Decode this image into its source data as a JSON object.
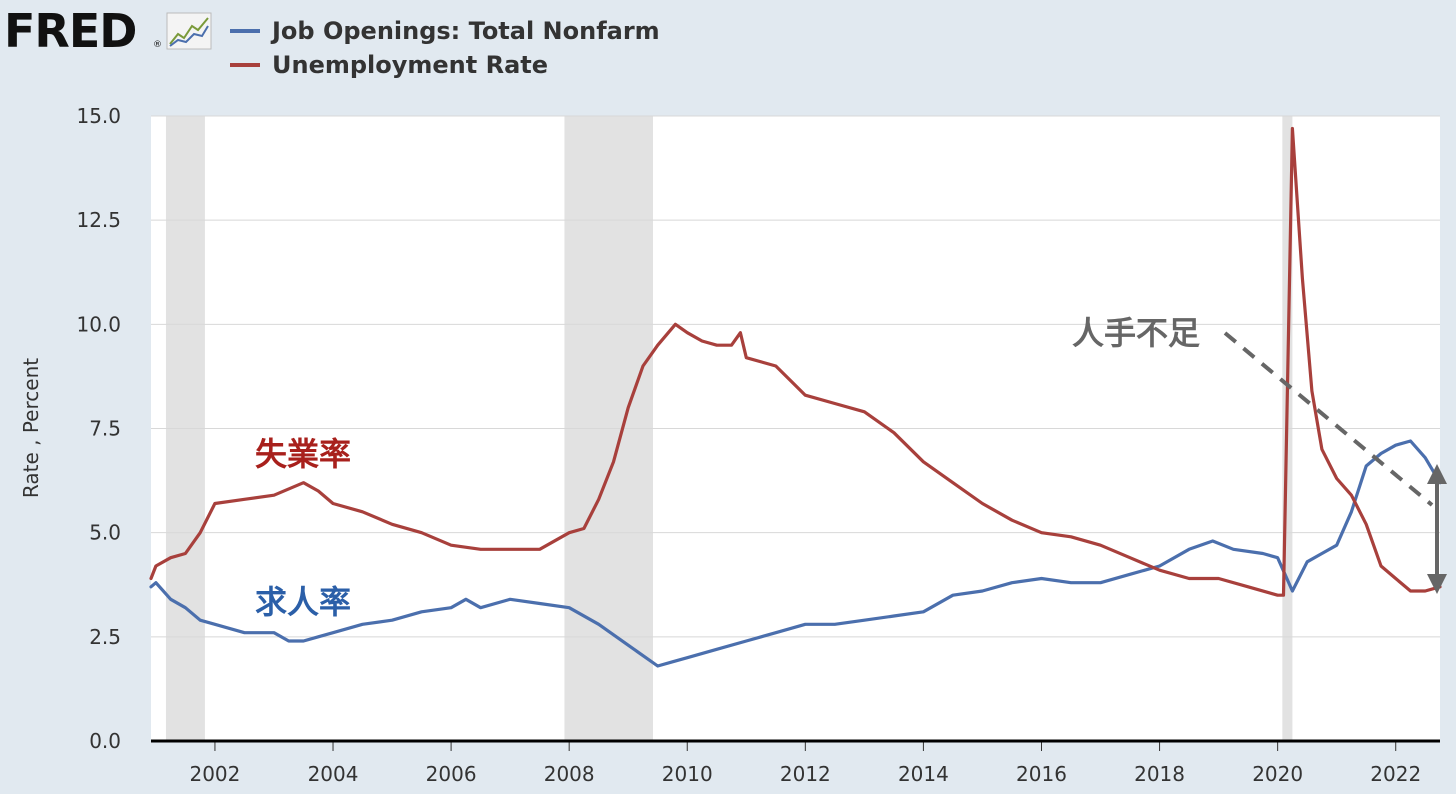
{
  "header": {
    "logo_text": "FRED",
    "logo_reg": "®",
    "logo_icon": "line-graph-icon"
  },
  "colors": {
    "job_openings": "#4b6fad",
    "unemployment": "#a8403c",
    "recession": "#e2e2e2",
    "grid": "#d8d8d8",
    "annotation_gray": "#666666"
  },
  "legend": [
    {
      "label": "Job Openings: Total Nonfarm",
      "color": "#4b6fad"
    },
    {
      "label": "Unemployment Rate",
      "color": "#a8403c"
    }
  ],
  "annotations": {
    "unemployment_label": "失業率",
    "job_openings_label": "求人率",
    "labor_shortage_label": "人手不足"
  },
  "chart_data": {
    "type": "line",
    "title": "",
    "xlabel": "",
    "ylabel": "Rate , Percent",
    "xlim": [
      2000.917,
      2022.75
    ],
    "ylim": [
      0,
      15
    ],
    "y_ticks": [
      "0.0",
      "2.5",
      "5.0",
      "7.5",
      "10.0",
      "12.5",
      "15.0"
    ],
    "x_ticks": [
      "2002",
      "2004",
      "2006",
      "2008",
      "2010",
      "2012",
      "2014",
      "2016",
      "2018",
      "2020",
      "2022"
    ],
    "grid": true,
    "legend_position": "top-left",
    "recessions": [
      [
        2001.17,
        2001.83
      ],
      [
        2007.92,
        2009.42
      ],
      [
        2020.08,
        2020.25
      ]
    ],
    "series": [
      {
        "name": "Job Openings: Total Nonfarm",
        "points": [
          [
            2000.917,
            3.7
          ],
          [
            2001.0,
            3.8
          ],
          [
            2001.25,
            3.4
          ],
          [
            2001.5,
            3.2
          ],
          [
            2001.75,
            2.9
          ],
          [
            2002.0,
            2.8
          ],
          [
            2002.5,
            2.6
          ],
          [
            2003.0,
            2.6
          ],
          [
            2003.25,
            2.4
          ],
          [
            2003.5,
            2.4
          ],
          [
            2003.75,
            2.5
          ],
          [
            2004.0,
            2.6
          ],
          [
            2004.5,
            2.8
          ],
          [
            2005.0,
            2.9
          ],
          [
            2005.5,
            3.1
          ],
          [
            2006.0,
            3.2
          ],
          [
            2006.25,
            3.4
          ],
          [
            2006.5,
            3.2
          ],
          [
            2007.0,
            3.4
          ],
          [
            2007.5,
            3.3
          ],
          [
            2008.0,
            3.2
          ],
          [
            2008.5,
            2.8
          ],
          [
            2009.0,
            2.3
          ],
          [
            2009.5,
            1.8
          ],
          [
            2009.75,
            1.9
          ],
          [
            2010.0,
            2.0
          ],
          [
            2010.5,
            2.2
          ],
          [
            2011.0,
            2.4
          ],
          [
            2011.5,
            2.6
          ],
          [
            2012.0,
            2.8
          ],
          [
            2012.5,
            2.8
          ],
          [
            2013.0,
            2.9
          ],
          [
            2013.5,
            3.0
          ],
          [
            2014.0,
            3.1
          ],
          [
            2014.5,
            3.5
          ],
          [
            2015.0,
            3.6
          ],
          [
            2015.5,
            3.8
          ],
          [
            2016.0,
            3.9
          ],
          [
            2016.5,
            3.8
          ],
          [
            2017.0,
            3.8
          ],
          [
            2017.5,
            4.0
          ],
          [
            2018.0,
            4.2
          ],
          [
            2018.5,
            4.6
          ],
          [
            2018.9,
            4.8
          ],
          [
            2019.25,
            4.6
          ],
          [
            2019.75,
            4.5
          ],
          [
            2020.0,
            4.4
          ],
          [
            2020.25,
            3.6
          ],
          [
            2020.5,
            4.3
          ],
          [
            2020.75,
            4.5
          ],
          [
            2021.0,
            4.7
          ],
          [
            2021.25,
            5.5
          ],
          [
            2021.5,
            6.6
          ],
          [
            2021.75,
            6.9
          ],
          [
            2022.0,
            7.1
          ],
          [
            2022.25,
            7.2
          ],
          [
            2022.5,
            6.8
          ],
          [
            2022.75,
            6.2
          ]
        ]
      },
      {
        "name": "Unemployment Rate",
        "points": [
          [
            2000.917,
            3.9
          ],
          [
            2001.0,
            4.2
          ],
          [
            2001.25,
            4.4
          ],
          [
            2001.5,
            4.5
          ],
          [
            2001.75,
            5.0
          ],
          [
            2002.0,
            5.7
          ],
          [
            2002.5,
            5.8
          ],
          [
            2003.0,
            5.9
          ],
          [
            2003.5,
            6.2
          ],
          [
            2003.75,
            6.0
          ],
          [
            2004.0,
            5.7
          ],
          [
            2004.5,
            5.5
          ],
          [
            2005.0,
            5.2
          ],
          [
            2005.5,
            5.0
          ],
          [
            2006.0,
            4.7
          ],
          [
            2006.5,
            4.6
          ],
          [
            2007.0,
            4.6
          ],
          [
            2007.5,
            4.6
          ],
          [
            2008.0,
            5.0
          ],
          [
            2008.25,
            5.1
          ],
          [
            2008.5,
            5.8
          ],
          [
            2008.75,
            6.7
          ],
          [
            2009.0,
            8.0
          ],
          [
            2009.25,
            9.0
          ],
          [
            2009.5,
            9.5
          ],
          [
            2009.8,
            10.0
          ],
          [
            2010.0,
            9.8
          ],
          [
            2010.25,
            9.6
          ],
          [
            2010.5,
            9.5
          ],
          [
            2010.75,
            9.5
          ],
          [
            2010.9,
            9.8
          ],
          [
            2011.0,
            9.2
          ],
          [
            2011.5,
            9.0
          ],
          [
            2012.0,
            8.3
          ],
          [
            2012.5,
            8.1
          ],
          [
            2013.0,
            7.9
          ],
          [
            2013.5,
            7.4
          ],
          [
            2014.0,
            6.7
          ],
          [
            2014.5,
            6.2
          ],
          [
            2015.0,
            5.7
          ],
          [
            2015.5,
            5.3
          ],
          [
            2016.0,
            5.0
          ],
          [
            2016.5,
            4.9
          ],
          [
            2017.0,
            4.7
          ],
          [
            2017.5,
            4.4
          ],
          [
            2018.0,
            4.1
          ],
          [
            2018.5,
            3.9
          ],
          [
            2019.0,
            3.9
          ],
          [
            2019.5,
            3.7
          ],
          [
            2020.0,
            3.5
          ],
          [
            2020.1,
            3.5
          ],
          [
            2020.25,
            14.7
          ],
          [
            2020.42,
            11.1
          ],
          [
            2020.58,
            8.4
          ],
          [
            2020.75,
            7.0
          ],
          [
            2021.0,
            6.3
          ],
          [
            2021.25,
            5.9
          ],
          [
            2021.5,
            5.2
          ],
          [
            2021.75,
            4.2
          ],
          [
            2022.0,
            3.9
          ],
          [
            2022.25,
            3.6
          ],
          [
            2022.5,
            3.6
          ],
          [
            2022.75,
            3.7
          ]
        ]
      }
    ]
  }
}
